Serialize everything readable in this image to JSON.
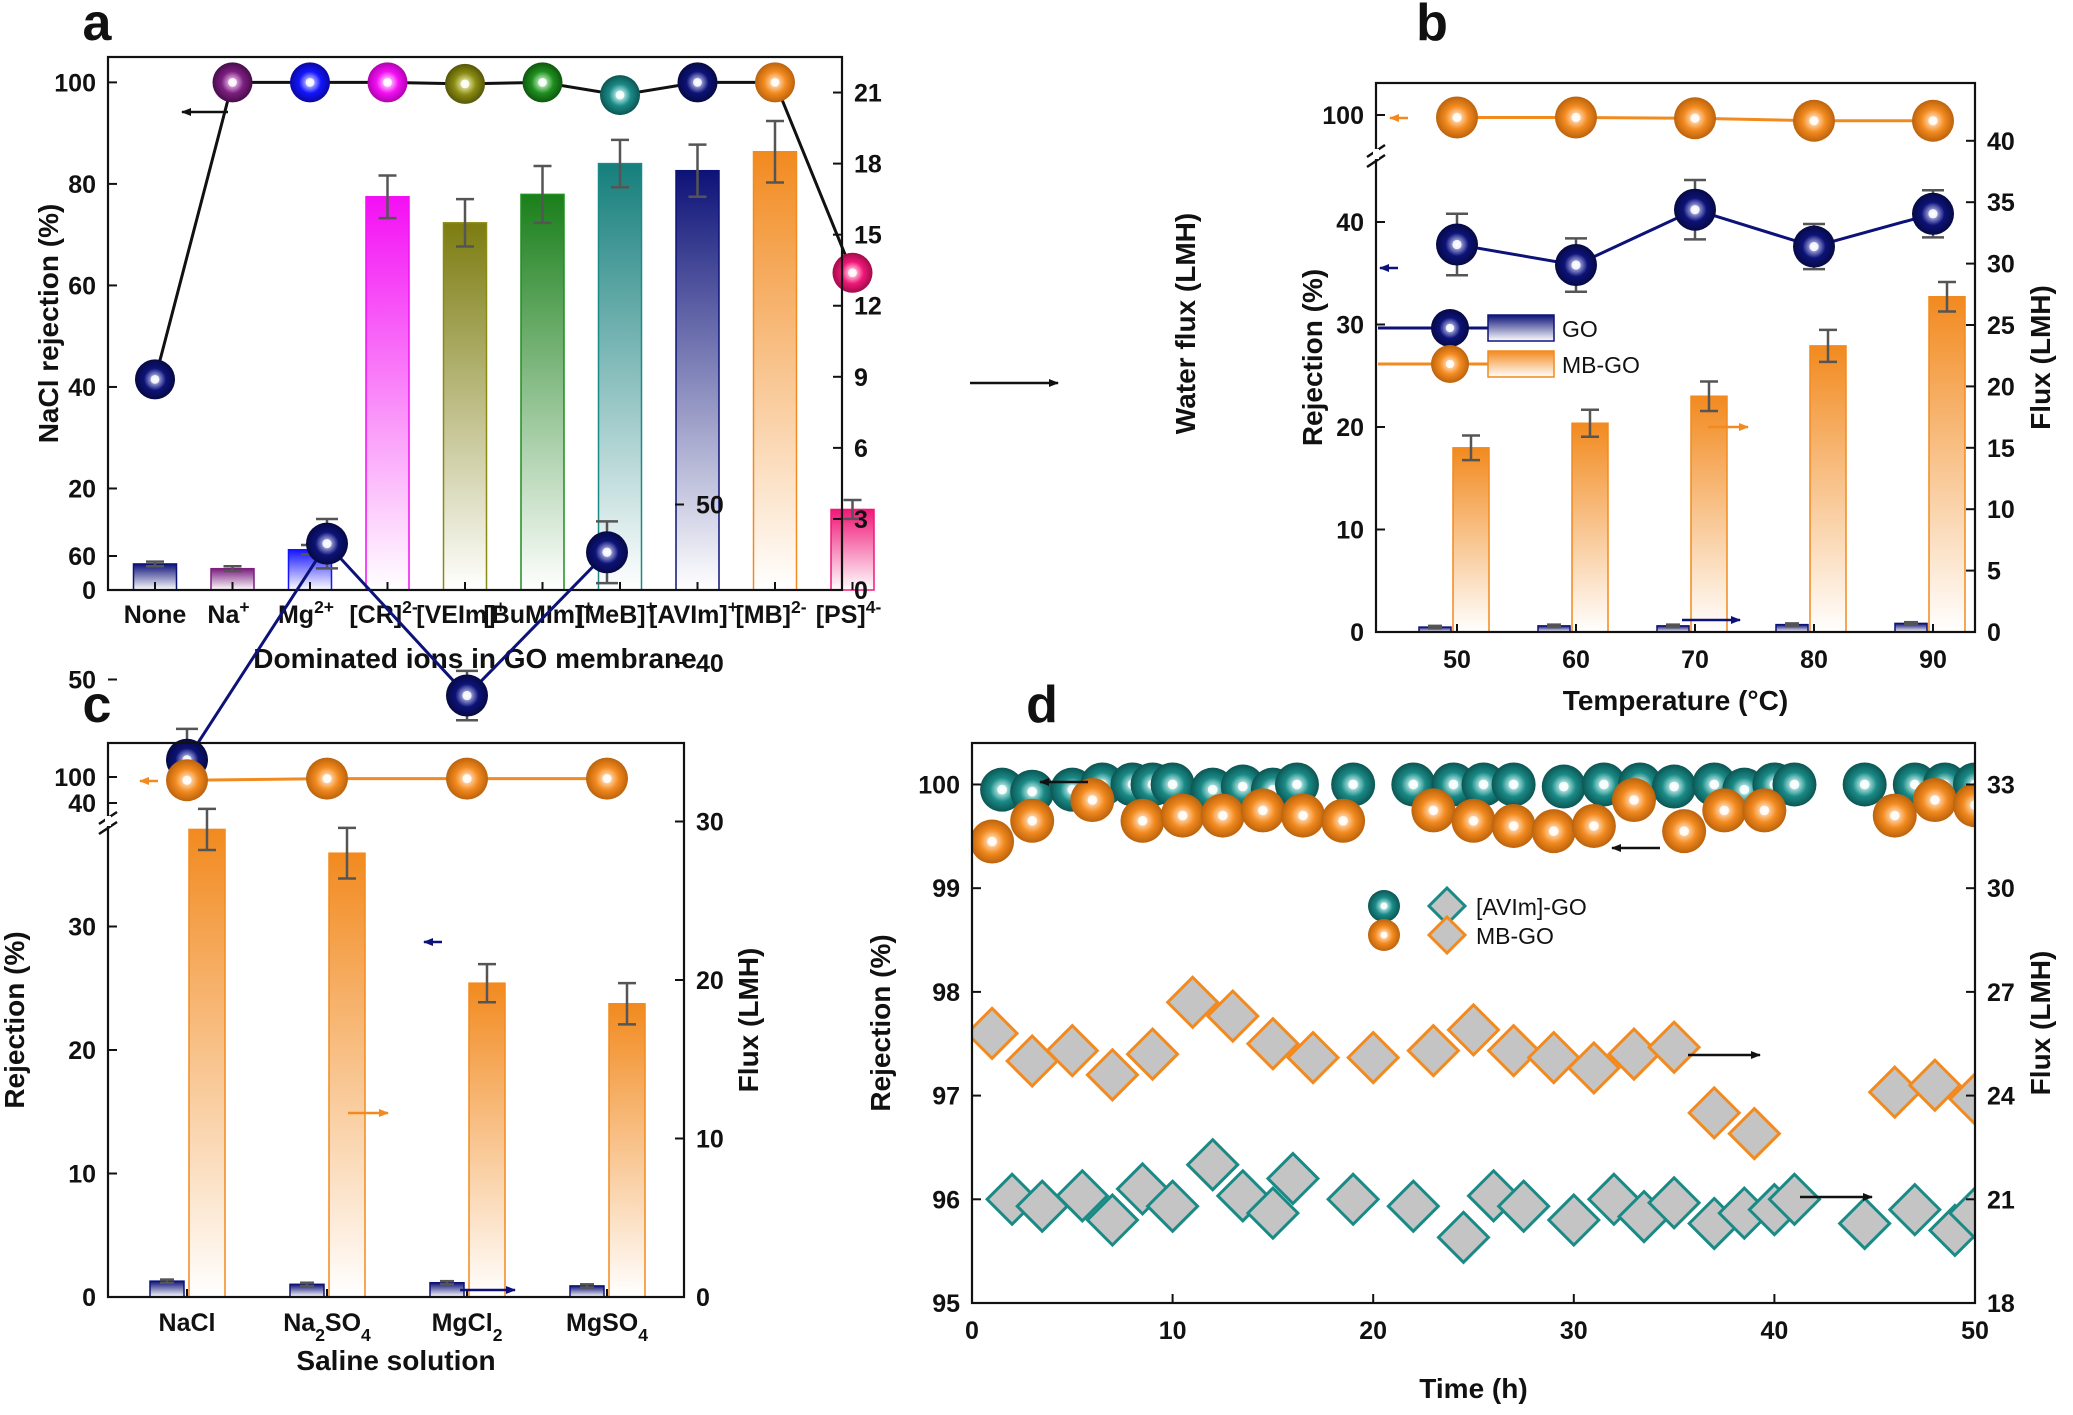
{
  "figure": {
    "colors": {
      "navy": "#0d1278",
      "orange": "#f28a1f",
      "teal": "#1a8a86",
      "gray": "#c4c4c4",
      "purple": "#7c1f7f",
      "blue": "#1414ff",
      "magenta": "#f40ff4",
      "olive": "#8a8a12",
      "green": "#1f8f1f",
      "pink": "#f01878"
    }
  },
  "chart_data": [
    {
      "panel": "a",
      "type": "bar+line",
      "xlabel": "Dominated ions in GO membrane",
      "ylabel": "NaCl rejection (%)",
      "ylabel_right": "Water flux (LMH)",
      "ylim": [
        0,
        105
      ],
      "ylim_right": [
        0,
        22.5
      ],
      "yticks": [
        "0",
        "20",
        "40",
        "60",
        "80",
        "100"
      ],
      "yticks_right": [
        "0",
        "3",
        "6",
        "9",
        "12",
        "15",
        "18",
        "21"
      ],
      "categories": [
        {
          "base": "None",
          "sup": ""
        },
        {
          "base": "Na",
          "sup": "+"
        },
        {
          "base": "Mg",
          "sup": "2+"
        },
        {
          "base": "[CR]",
          "sup": "2-"
        },
        {
          "base": "[VEIm]",
          "sup": "+"
        },
        {
          "base": "[BuMIm]",
          "sup": "+"
        },
        {
          "base": "[MeB]",
          "sup": "+"
        },
        {
          "base": "[AVIm]",
          "sup": "+"
        },
        {
          "base": "[MB]",
          "sup": "2-"
        },
        {
          "base": "[PS]",
          "sup": "4-"
        }
      ],
      "series": [
        {
          "name": "NaCl rejection",
          "axis": "left",
          "kind": "line+marker",
          "values": [
            41.5,
            100,
            100,
            100,
            99.7,
            100,
            97.5,
            100,
            100,
            62.5
          ]
        },
        {
          "name": "Water flux",
          "axis": "right",
          "kind": "bar",
          "values": [
            1.1,
            0.9,
            1.7,
            16.6,
            15.5,
            16.7,
            18.0,
            17.7,
            18.5,
            3.4
          ],
          "errors": [
            0.1,
            0.1,
            0.2,
            0.9,
            1.0,
            1.2,
            1.0,
            1.1,
            1.3,
            0.4
          ]
        }
      ],
      "marker_colors": [
        "#0d1278",
        "#7c1f7f",
        "#1414ff",
        "#f40ff4",
        "#8a8a12",
        "#1f8f1f",
        "#1a8a86",
        "#0d1278",
        "#f28a1f",
        "#f01878"
      ]
    },
    {
      "panel": "b",
      "type": "bar+line",
      "xlabel": "Temperature (°C)",
      "ylabel": "Rejection (%)",
      "ylabel_right": "Flux (LMH)",
      "axis_break": true,
      "yticks": [
        "0",
        "10",
        "20",
        "30",
        "40",
        "100"
      ],
      "yticks_right": [
        "0",
        "5",
        "10",
        "15",
        "20",
        "25",
        "30",
        "35",
        "40"
      ],
      "categories": [
        "50",
        "60",
        "70",
        "80",
        "90"
      ],
      "series": [
        {
          "name": "GO",
          "kind": "rejection",
          "values": [
            37.8,
            35.8,
            41.2,
            37.6,
            40.8
          ],
          "errors": [
            3.0,
            2.6,
            2.9,
            2.2,
            2.3
          ]
        },
        {
          "name": "MB-GO",
          "kind": "rejection",
          "values": [
            99.7,
            99.7,
            99.6,
            99.3,
            99.3
          ]
        },
        {
          "name": "GO",
          "kind": "flux",
          "values": [
            0.4,
            0.5,
            0.5,
            0.6,
            0.7
          ],
          "errors": [
            0.1,
            0.1,
            0.1,
            0.1,
            0.1
          ]
        },
        {
          "name": "MB-GO",
          "kind": "flux",
          "values": [
            15.0,
            17.0,
            19.2,
            23.3,
            27.3
          ],
          "errors": [
            1.0,
            1.1,
            1.2,
            1.3,
            1.2
          ]
        }
      ],
      "legend": [
        "GO",
        "MB-GO"
      ]
    },
    {
      "panel": "c",
      "type": "bar+line",
      "xlabel": "Saline solution",
      "ylabel": "Rejection (%)",
      "ylabel_right": "Flux (LMH)",
      "axis_break": true,
      "yticks": [
        "0",
        "10",
        "20",
        "30",
        "40",
        "50",
        "60",
        "100"
      ],
      "yticks_right": [
        "0",
        "10",
        "20",
        "30",
        "40",
        "50"
      ],
      "categories": [
        {
          "parts": [
            [
              "NaCl",
              ""
            ]
          ]
        },
        {
          "parts": [
            [
              "Na",
              ""
            ],
            [
              "2",
              "sub"
            ],
            [
              "SO",
              ""
            ],
            [
              "4",
              "sub"
            ]
          ]
        },
        {
          "parts": [
            [
              "MgCl",
              ""
            ],
            [
              "2",
              "sub"
            ]
          ]
        },
        {
          "parts": [
            [
              "MgSO",
              ""
            ],
            [
              "4",
              "sub"
            ]
          ]
        }
      ],
      "series": [
        {
          "name": "GO",
          "kind": "rejection",
          "values": [
            43.5,
            61.0,
            48.7,
            60.3
          ],
          "errors": [
            2.5,
            2.0,
            2.0,
            2.5
          ]
        },
        {
          "name": "MB-GO",
          "kind": "rejection",
          "values": [
            99.6,
            99.8,
            99.8,
            99.8
          ]
        },
        {
          "name": "GO",
          "kind": "flux",
          "values": [
            1.0,
            0.8,
            0.9,
            0.7
          ],
          "errors": [
            0.1,
            0.1,
            0.1,
            0.1
          ]
        },
        {
          "name": "MB-GO",
          "kind": "flux",
          "values": [
            29.5,
            28.0,
            19.8,
            18.5
          ],
          "errors": [
            1.3,
            1.6,
            1.2,
            1.3
          ]
        }
      ]
    },
    {
      "panel": "d",
      "type": "scatter",
      "xlabel": "Time (h)",
      "ylabel": "Rejection (%)",
      "ylabel_right": "Flux (LMH)",
      "xlim": [
        0,
        50
      ],
      "ylim": [
        95,
        100.4
      ],
      "ylim_right": [
        18,
        34.2
      ],
      "xticks": [
        "0",
        "10",
        "20",
        "30",
        "40",
        "50"
      ],
      "yticks": [
        "95",
        "96",
        "97",
        "98",
        "99",
        "100"
      ],
      "yticks_right": [
        "18",
        "21",
        "24",
        "27",
        "30",
        "33"
      ],
      "legend": [
        "[AVIm]-GO",
        "MB-GO"
      ],
      "series": [
        {
          "name": "[AVIm]-GO rejection",
          "axis": "left",
          "x": [
            1.5,
            3,
            5,
            6.5,
            8,
            9,
            10,
            12,
            13.5,
            15,
            16.2,
            19,
            22,
            24,
            25.5,
            27,
            29.5,
            31.5,
            33.3,
            35,
            37,
            38.5,
            40,
            41,
            44.5,
            47,
            48.5,
            50
          ],
          "y": [
            99.95,
            99.93,
            99.95,
            100,
            100,
            100,
            100,
            99.95,
            99.98,
            99.95,
            100,
            100,
            100,
            100,
            100,
            100,
            99.98,
            100,
            100,
            99.98,
            100,
            99.95,
            100,
            100,
            100,
            100,
            100,
            100
          ]
        },
        {
          "name": "MB-GO rejection",
          "axis": "left",
          "x": [
            1,
            3,
            6,
            8.5,
            10.5,
            12.5,
            14.5,
            16.5,
            18.5,
            23,
            25,
            27,
            29,
            31,
            33,
            35.5,
            37.5,
            39.5,
            46,
            48,
            50
          ],
          "y": [
            99.45,
            99.65,
            99.85,
            99.65,
            99.7,
            99.7,
            99.75,
            99.7,
            99.65,
            99.75,
            99.65,
            99.6,
            99.55,
            99.6,
            99.85,
            99.55,
            99.75,
            99.75,
            99.7,
            99.85,
            99.8
          ]
        },
        {
          "name": "MB-GO flux",
          "axis": "right",
          "x": [
            1,
            3,
            5,
            7,
            9,
            11,
            13,
            15,
            17,
            20,
            23,
            25,
            27,
            29,
            31,
            33,
            35,
            37,
            39,
            46,
            48,
            50
          ],
          "y": [
            25.8,
            25.0,
            25.3,
            24.6,
            25.2,
            26.7,
            26.3,
            25.5,
            25.1,
            25.1,
            25.3,
            25.9,
            25.3,
            25.1,
            24.8,
            25.2,
            25.4,
            23.5,
            22.9,
            24.1,
            24.3,
            23.9
          ]
        },
        {
          "name": "[AVIm]-GO flux",
          "axis": "right",
          "x": [
            2,
            3.5,
            5.5,
            7,
            8.5,
            10,
            12,
            13.5,
            15,
            16,
            19,
            22,
            24.5,
            26,
            27.5,
            30,
            32,
            33.5,
            35,
            37,
            38.5,
            40,
            41,
            44.5,
            47,
            49,
            50
          ],
          "y": [
            21.0,
            20.8,
            21.1,
            20.4,
            21.3,
            20.8,
            22.0,
            21.1,
            20.6,
            21.6,
            21.0,
            20.8,
            19.9,
            21.1,
            20.8,
            20.4,
            21.0,
            20.5,
            20.9,
            20.3,
            20.6,
            20.7,
            21.0,
            20.3,
            20.7,
            20.1,
            20.6
          ]
        }
      ]
    }
  ]
}
